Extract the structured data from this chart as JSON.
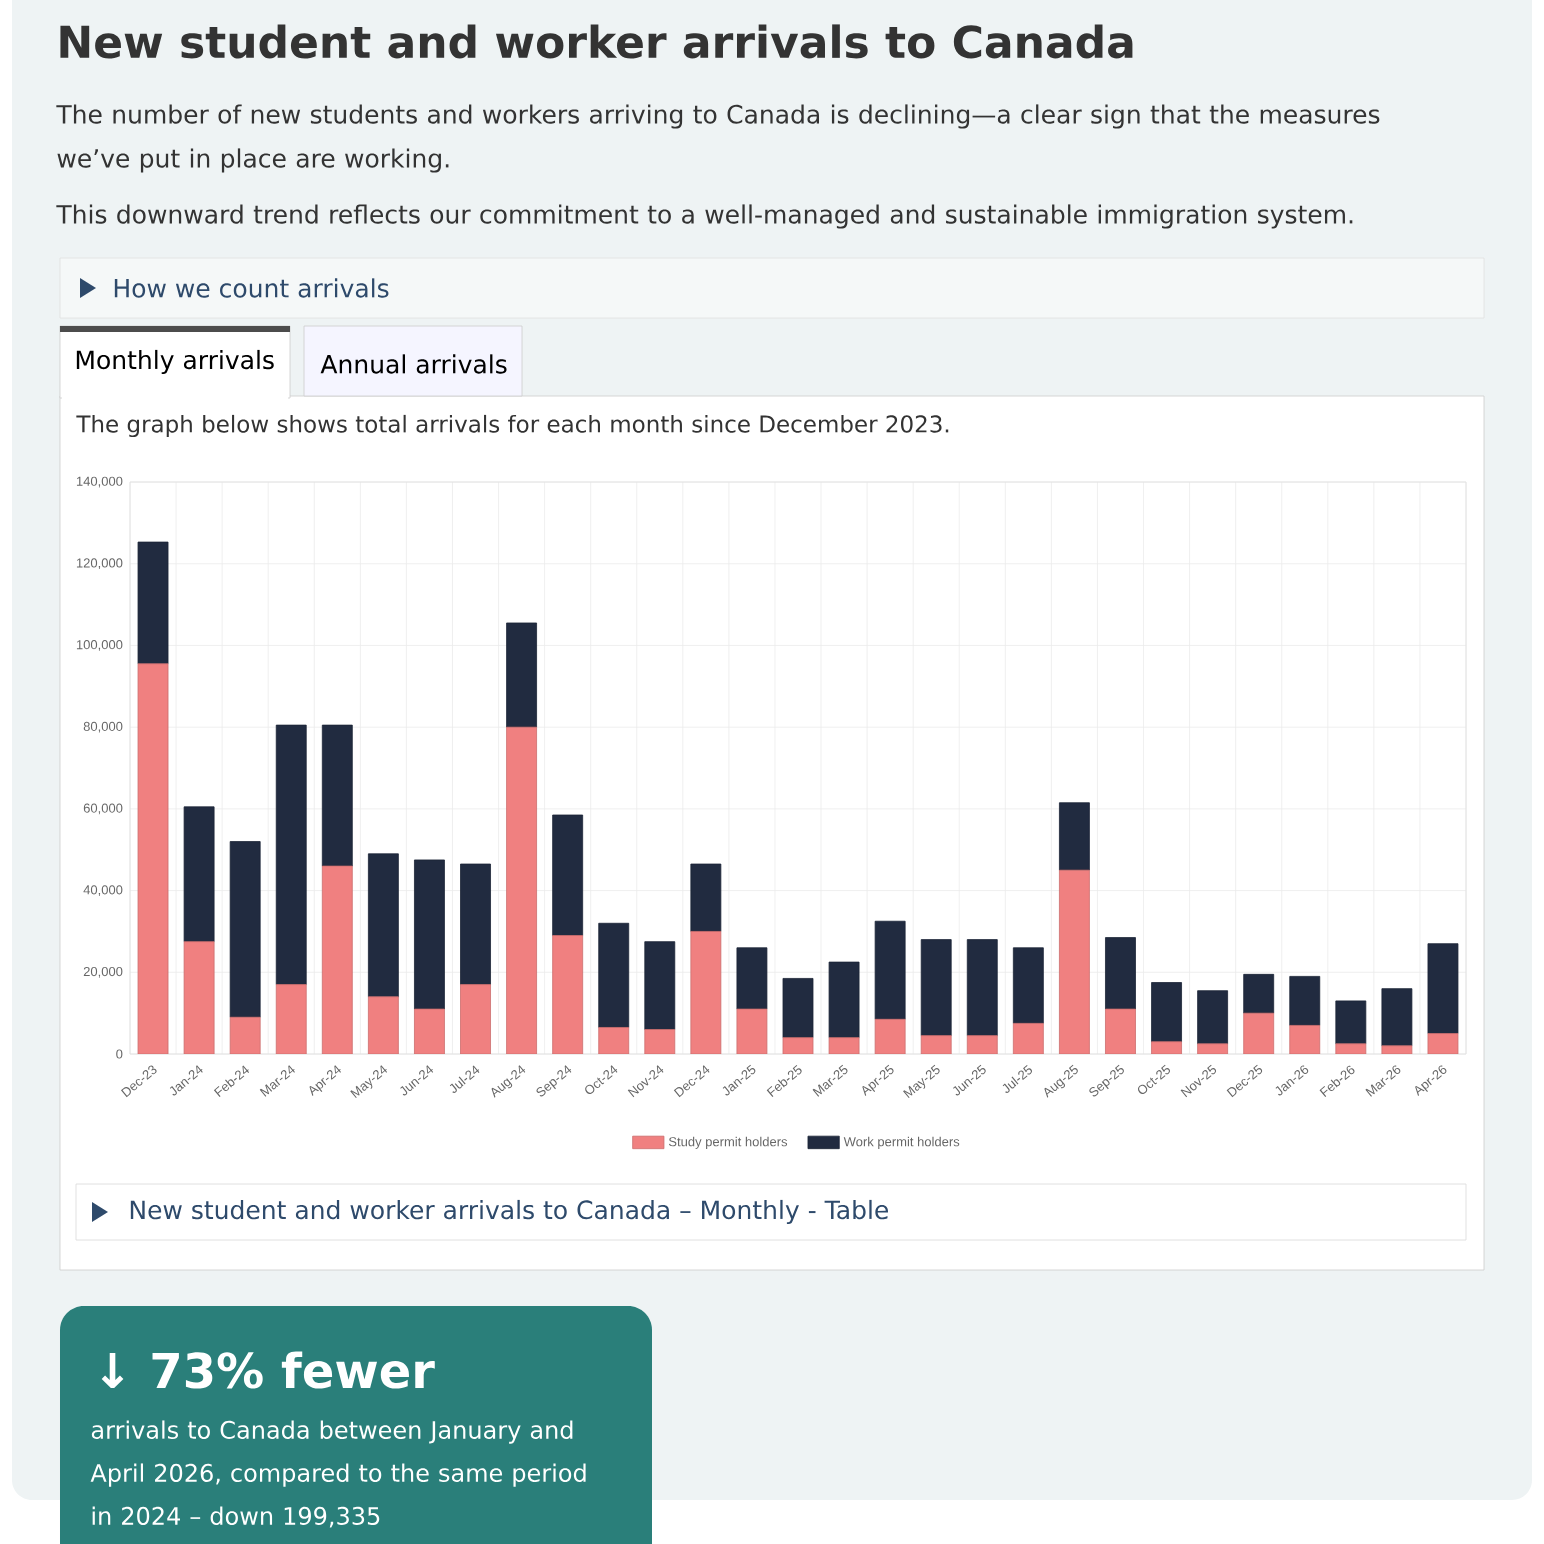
{
  "chart_data": {
    "type": "bar",
    "stacked": true,
    "title": "New student and worker arrivals to Canada",
    "subtitle": "The graph below shows total arrivals for each month since December 2023.",
    "categories": [
      "Dec-23",
      "Jan-24",
      "Feb-24",
      "Mar-24",
      "Apr-24",
      "May-24",
      "Jun-24",
      "Jul-24",
      "Aug-24",
      "Sep-24",
      "Oct-24",
      "Nov-24",
      "Dec-24",
      "Jan-25",
      "Feb-25",
      "Mar-25",
      "Apr-25",
      "May-25",
      "Jun-25",
      "Jul-25",
      "Aug-25",
      "Sep-25",
      "Oct-25",
      "Nov-25",
      "Dec-25",
      "Jan-26",
      "Feb-26",
      "Mar-26",
      "Apr-26"
    ],
    "series": [
      {
        "name": "Study permit holders",
        "color": "#f08080",
        "values": [
          95500,
          27500,
          9000,
          17000,
          46000,
          14000,
          11000,
          17000,
          80000,
          29000,
          6500,
          6000,
          30000,
          11000,
          4000,
          4000,
          8500,
          4500,
          4500,
          7500,
          45000,
          11000,
          3000,
          2500,
          10000,
          7000,
          2500,
          2000,
          5000
        ]
      },
      {
        "name": "Work permit holders",
        "color": "#212b40",
        "values": [
          29800,
          33000,
          43000,
          63500,
          34500,
          35000,
          36500,
          29500,
          25500,
          29500,
          25500,
          21500,
          16500,
          15000,
          14500,
          18500,
          24000,
          23500,
          23500,
          18500,
          16500,
          17500,
          14500,
          13000,
          9500,
          12000,
          10500,
          14000,
          22000
        ]
      }
    ],
    "ylim": [
      0,
      140000
    ],
    "yticks": [
      0,
      {
        "value": 20000,
        "label": "20,000"
      },
      {
        "value": 40000,
        "label": "40,000"
      },
      {
        "value": 60000,
        "label": "60,000"
      },
      {
        "value": 80000,
        "label": "80,000"
      },
      {
        "value": 100000,
        "label": "100,000"
      },
      {
        "value": 120000,
        "label": "120,000"
      },
      {
        "value": 140000,
        "label": "140,000"
      }
    ],
    "grid": true,
    "legend": "bottom",
    "annotations": [
      "The number of new students and workers arriving to Canada is declining—a clear sign that the measures we’ve put in place are working.",
      "This downward trend reflects our commitment to a well-managed and sustainable immigration system.",
      "How we count arrivals",
      "Monthly arrivals",
      "Annual arrivals",
      "New student and worker arrivals to Canada – Monthly - Table",
      "↓ 73% fewer",
      "arrivals to Canada between January and April 2026, compared to the same period in 2024 – down 199,335"
    ]
  }
}
